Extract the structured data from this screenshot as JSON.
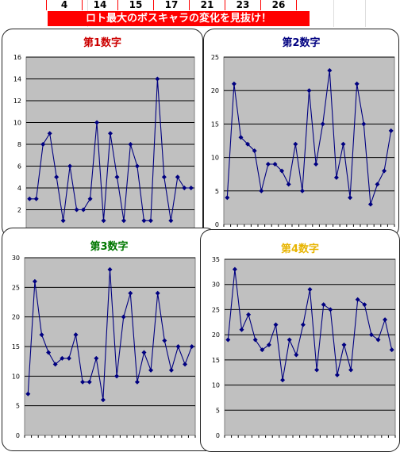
{
  "header": {
    "numbers": [
      "4",
      "14",
      "15",
      "17",
      "21",
      "23",
      "26"
    ],
    "banner": "ロト最大のボスキャラの変化を見抜け！"
  },
  "chart_data": [
    {
      "type": "line",
      "title": "第1数字",
      "title_color": "#cc0000",
      "ylim": [
        0,
        16
      ],
      "yticks": [
        2,
        4,
        6,
        8,
        10,
        12,
        14,
        16
      ],
      "values": [
        3,
        3,
        8,
        9,
        5,
        1,
        6,
        2,
        2,
        3,
        10,
        1,
        9,
        5,
        1,
        8,
        6,
        1,
        1,
        14,
        5,
        1,
        5,
        4,
        4
      ],
      "line_color": "#000080",
      "plot_bg": "#c0c0c0",
      "grid": true
    },
    {
      "type": "line",
      "title": "第2数字",
      "title_color": "#000080",
      "ylim": [
        0,
        25
      ],
      "yticks": [
        0,
        5,
        10,
        15,
        20,
        25
      ],
      "values": [
        4,
        21,
        13,
        12,
        11,
        5,
        9,
        9,
        8,
        6,
        12,
        5,
        20,
        9,
        15,
        23,
        7,
        12,
        4,
        21,
        15,
        3,
        6,
        8,
        14
      ],
      "line_color": "#000080",
      "plot_bg": "#c0c0c0",
      "grid": true
    },
    {
      "type": "line",
      "title": "第3数字",
      "title_color": "#007700",
      "ylim": [
        0,
        30
      ],
      "yticks": [
        0,
        5,
        10,
        15,
        20,
        25,
        30
      ],
      "values": [
        7,
        26,
        17,
        14,
        12,
        13,
        13,
        17,
        9,
        9,
        13,
        6,
        28,
        10,
        20,
        24,
        9,
        14,
        11,
        24,
        16,
        11,
        15,
        12,
        15
      ],
      "line_color": "#000080",
      "plot_bg": "#c0c0c0",
      "grid": true
    },
    {
      "type": "line",
      "title": "第4数字",
      "title_color": "#e8b400",
      "ylim": [
        0,
        35
      ],
      "yticks": [
        0,
        5,
        10,
        15,
        20,
        25,
        30,
        35
      ],
      "values": [
        19,
        33,
        21,
        24,
        19,
        17,
        18,
        22,
        11,
        19,
        16,
        22,
        29,
        13,
        26,
        25,
        12,
        18,
        13,
        27,
        26,
        20,
        19,
        23,
        17
      ],
      "line_color": "#000080",
      "plot_bg": "#c0c0c0",
      "grid": true
    }
  ]
}
